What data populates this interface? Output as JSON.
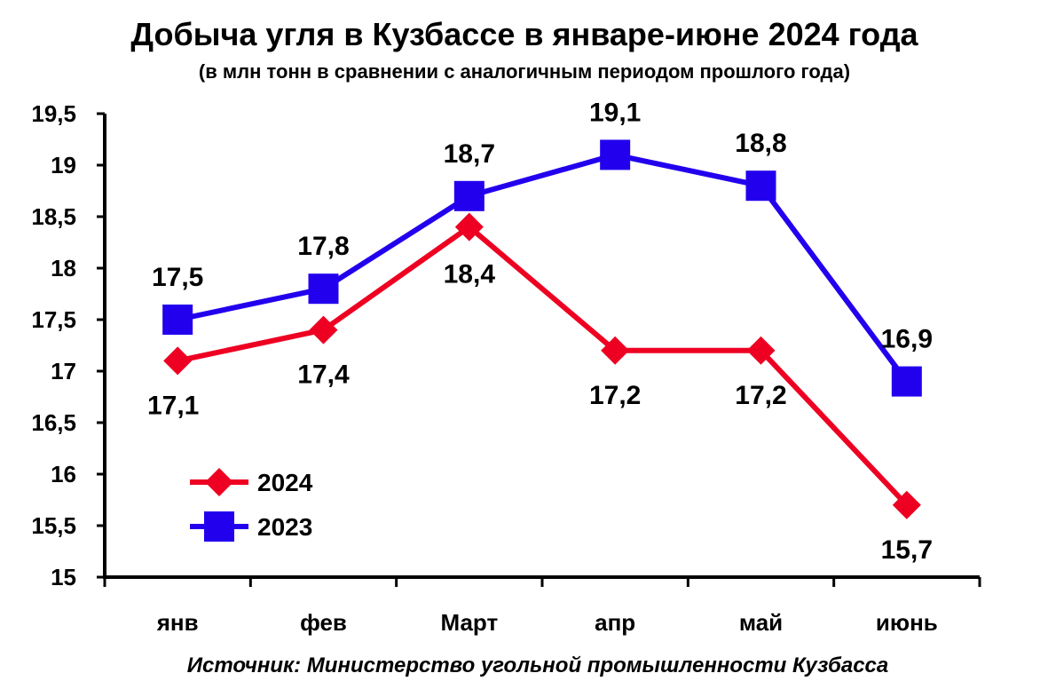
{
  "chart_data": {
    "type": "line",
    "title": "Добыча угля в Кузбассе в январе-июне 2024 года",
    "subtitle": "(в млн тонн в сравнении с аналогичным периодом прошлого года)",
    "categories": [
      "янв",
      "фев",
      "Март",
      "апр",
      "май",
      "июнь"
    ],
    "series": [
      {
        "name": "2024",
        "values": [
          17.1,
          17.4,
          18.4,
          17.2,
          17.2,
          15.7
        ],
        "labels": [
          "17,1",
          "17,4",
          "18,4",
          "17,2",
          "17,2",
          "15,7"
        ],
        "color": "#ee0022",
        "marker": "diamond"
      },
      {
        "name": "2023",
        "values": [
          17.5,
          17.8,
          18.7,
          19.1,
          18.8,
          16.9
        ],
        "labels": [
          "17,5",
          "17,8",
          "18,7",
          "19,1",
          "18,8",
          "16,9"
        ],
        "color": "#2200ee",
        "marker": "square"
      }
    ],
    "y_ticks": [
      {
        "value": 19.5,
        "label": "19,5"
      },
      {
        "value": 19,
        "label": "19"
      },
      {
        "value": 18.5,
        "label": "18,5"
      },
      {
        "value": 18,
        "label": "18"
      },
      {
        "value": 17.5,
        "label": "17,5"
      },
      {
        "value": 17,
        "label": "17"
      },
      {
        "value": 16.5,
        "label": "16,5"
      },
      {
        "value": 16,
        "label": "16"
      },
      {
        "value": 15.5,
        "label": "15,5"
      },
      {
        "value": 15,
        "label": "15"
      }
    ],
    "ylim": [
      15,
      19.5
    ],
    "grid": false,
    "legend": "inside-bottom-left",
    "source": "Источник: Министерство угольной промышленности Кузбасса"
  }
}
